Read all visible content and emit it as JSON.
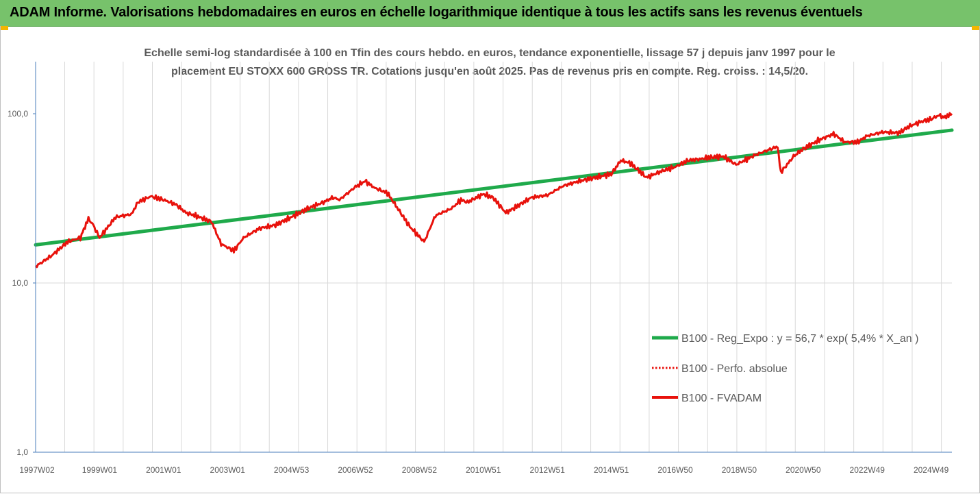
{
  "banner": {
    "title": "ADAM Informe. Valorisations hebdomadaires en euros en échelle logarithmique identique à tous les actifs sans les revenus éventuels"
  },
  "colors": {
    "banner_bg": "#77c26b",
    "regression": "#1faa4b",
    "series": "#e8120c",
    "grid": "#d9d9d9",
    "text": "#595959"
  },
  "chart_data": {
    "type": "line",
    "title": "Echelle semi-log standardisée à 100 en Tfin des cours hebdo. en euros, tendance exponentielle, lissage 57 j depuis janv 1997 pour le placement EU STOXX 600 GROSS TR. Cotations jusqu'en août 2025.  Pas de revenus pris en compte. Reg. croiss. : 14,5/20.",
    "y_scale": "log",
    "ylim": [
      1,
      200
    ],
    "y_ticks": [
      "1,0",
      "10,0",
      "100,0"
    ],
    "y_tick_values": [
      1,
      10,
      100
    ],
    "xlim": [
      1997.0,
      2025.65
    ],
    "x_ticks": [
      "1997W02",
      "1999W01",
      "2001W01",
      "2003W01",
      "2004W53",
      "2006W52",
      "2008W52",
      "2010W51",
      "2012W51",
      "2014W51",
      "2016W50",
      "2018W50",
      "2020W50",
      "2022W49",
      "2024W49"
    ],
    "x_tick_values": [
      1997.0,
      1999.0,
      2001.0,
      2003.0,
      2005.0,
      2007.0,
      2009.0,
      2011.0,
      2013.0,
      2015.0,
      2017.0,
      2019.0,
      2021.0,
      2023.0,
      2025.0
    ],
    "grid": "vertical",
    "legend_position": "bottom-right",
    "series": [
      {
        "name": "B100 - Reg_Expo : y = 56,7 * exp( 5,4% *  X_an )",
        "style": "solid-green",
        "x": [
          1997.0,
          2025.65
        ],
        "y": [
          16.8,
          80.0
        ]
      },
      {
        "name": "B100 - Perfo. absolue",
        "style": "dotted-red",
        "x": [
          1997.0,
          1997.5,
          1998.0,
          1998.4,
          1998.65,
          1998.8,
          1999.0,
          1999.5,
          2000.0,
          2000.2,
          2000.6,
          2001.0,
          2001.4,
          2001.7,
          2002.0,
          2002.5,
          2002.8,
          2003.2,
          2003.5,
          2004.0,
          2004.5,
          2005.0,
          2005.5,
          2006.0,
          2006.3,
          2006.5,
          2007.0,
          2007.3,
          2007.6,
          2008.0,
          2008.3,
          2008.7,
          2009.15,
          2009.5,
          2010.0,
          2010.3,
          2010.5,
          2011.0,
          2011.3,
          2011.7,
          2012.0,
          2012.5,
          2013.0,
          2013.5,
          2014.0,
          2014.5,
          2015.0,
          2015.3,
          2015.6,
          2016.1,
          2016.6,
          2017.0,
          2017.4,
          2017.8,
          2018.0,
          2018.5,
          2018.9,
          2019.5,
          2020.0,
          2020.2,
          2020.3,
          2020.7,
          2021.0,
          2021.5,
          2021.95,
          2022.3,
          2022.7,
          2023.0,
          2023.5,
          2024.0,
          2024.3,
          2024.7,
          2025.0,
          2025.25,
          2025.4,
          2025.65
        ],
        "y": [
          12.5,
          14.5,
          17.5,
          18.5,
          24.0,
          22.0,
          18.5,
          24.5,
          25.5,
          30.0,
          32.5,
          31.0,
          29.0,
          26.0,
          25.0,
          23.0,
          17.0,
          15.5,
          18.5,
          21.0,
          22.0,
          24.5,
          27.5,
          30.0,
          32.0,
          31.0,
          37.0,
          40.0,
          36.5,
          34.0,
          28.0,
          21.5,
          17.5,
          25.0,
          27.5,
          31.0,
          30.0,
          33.5,
          32.0,
          26.0,
          28.0,
          32.0,
          33.0,
          37.5,
          40.0,
          42.0,
          44.0,
          53.0,
          51.0,
          42.0,
          46.0,
          48.5,
          53.0,
          54.0,
          55.0,
          56.0,
          50.0,
          57.0,
          62.0,
          64.0,
          45.0,
          56.0,
          62.0,
          70.0,
          76.0,
          68.0,
          68.0,
          74.0,
          78.0,
          77.0,
          84.0,
          90.0,
          93.0,
          98.0,
          95.0,
          100.0
        ]
      },
      {
        "name": "B100 - FVADAM",
        "style": "solid-red",
        "x": [
          1997.0,
          1997.5,
          1998.0,
          1998.4,
          1998.65,
          1998.8,
          1999.0,
          1999.5,
          2000.0,
          2000.2,
          2000.6,
          2001.0,
          2001.4,
          2001.7,
          2002.0,
          2002.5,
          2002.8,
          2003.2,
          2003.5,
          2004.0,
          2004.5,
          2005.0,
          2005.5,
          2006.0,
          2006.3,
          2006.5,
          2007.0,
          2007.3,
          2007.6,
          2008.0,
          2008.3,
          2008.7,
          2009.15,
          2009.5,
          2010.0,
          2010.3,
          2010.5,
          2011.0,
          2011.3,
          2011.7,
          2012.0,
          2012.5,
          2013.0,
          2013.5,
          2014.0,
          2014.5,
          2015.0,
          2015.3,
          2015.6,
          2016.1,
          2016.6,
          2017.0,
          2017.4,
          2017.8,
          2018.0,
          2018.5,
          2018.9,
          2019.5,
          2020.0,
          2020.2,
          2020.3,
          2020.7,
          2021.0,
          2021.5,
          2021.95,
          2022.3,
          2022.7,
          2023.0,
          2023.5,
          2024.0,
          2024.3,
          2024.7,
          2025.0,
          2025.25,
          2025.4,
          2025.65
        ],
        "y": [
          12.5,
          14.5,
          17.5,
          18.5,
          24.0,
          22.0,
          18.5,
          24.5,
          25.5,
          30.0,
          32.5,
          31.0,
          29.0,
          26.0,
          25.0,
          23.0,
          17.0,
          15.5,
          18.5,
          21.0,
          22.0,
          24.5,
          27.5,
          30.0,
          32.0,
          31.0,
          37.0,
          40.0,
          36.5,
          34.0,
          28.0,
          21.5,
          17.5,
          25.0,
          27.5,
          31.0,
          30.0,
          33.5,
          32.0,
          26.0,
          28.0,
          32.0,
          33.0,
          37.5,
          40.0,
          42.0,
          44.0,
          53.0,
          51.0,
          42.0,
          46.0,
          48.5,
          53.0,
          54.0,
          55.0,
          56.0,
          50.0,
          57.0,
          62.0,
          64.0,
          45.0,
          56.0,
          62.0,
          70.0,
          76.0,
          68.0,
          68.0,
          74.0,
          78.0,
          77.0,
          84.0,
          90.0,
          93.0,
          98.0,
          95.0,
          100.0
        ]
      }
    ]
  }
}
